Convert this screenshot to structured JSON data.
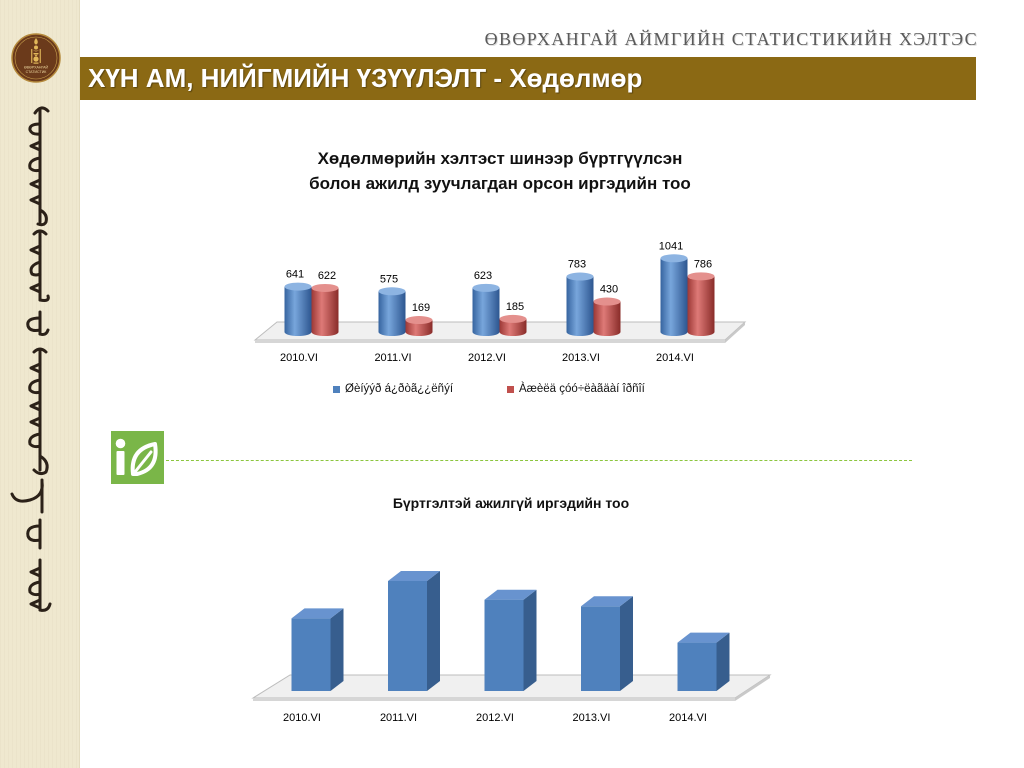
{
  "header": {
    "org_title": "ӨВӨРХАНГАЙ АЙМГИЙН СТАТИСТИКИЙН ХЭЛТЭС",
    "banner_title": "ХҮН АМ, НИЙГМИЙН ҮЗҮҮЛЭЛТ - Хөдөлмөр"
  },
  "sidebar": {
    "logo": {
      "icon": "soyombo-emblem-icon",
      "line1": "ӨВӨРХАНГАЙ",
      "line2": "СТАТИСТИК"
    }
  },
  "section_icon": "ie-green-logo-icon",
  "colors": {
    "banner": "#8B6914",
    "sidebar": "#EFE8CF",
    "series_blue": "#4F81BD",
    "series_red": "#C0504D",
    "section_green": "#7AB648",
    "divider_green": "#8CC63F"
  },
  "chart_data": [
    {
      "type": "bar",
      "style": "3d-cylinder",
      "title_lines": [
        "Хөдөлмөрийн хэлтэст шинээр бүртгүүлсэн",
        "болон ажилд зуучлагдан орсон иргэдийн тоо"
      ],
      "categories": [
        "2010.VI",
        "2011.VI",
        "2012.VI",
        "2013.VI",
        "2014.VI"
      ],
      "series": [
        {
          "name": "Øèíýýð á¿ðòã¿¿ëñýí",
          "values": [
            641,
            575,
            623,
            783,
            1041
          ],
          "color": "#4F81BD"
        },
        {
          "name": "Àæèëä çóó÷ëàãäàí îðñîí",
          "values": [
            622,
            169,
            185,
            430,
            786
          ],
          "color": "#C0504D"
        }
      ],
      "data_labels": true,
      "ylim": [
        0,
        1200
      ],
      "grid": false,
      "legend": "bottom"
    },
    {
      "type": "bar",
      "style": "3d-box",
      "title": "Бүртгэлтэй ажилгүй иргэдийн тоо",
      "categories": [
        "2010.VI",
        "2011.VI",
        "2012.VI",
        "2013.VI",
        "2014.VI"
      ],
      "series": [
        {
          "values": [
            0.66,
            1.0,
            0.83,
            0.77,
            0.44
          ],
          "color": "#4F81BD"
        }
      ],
      "data_labels": false,
      "ylim": [
        0,
        1
      ],
      "grid": false,
      "legend": "none"
    }
  ]
}
